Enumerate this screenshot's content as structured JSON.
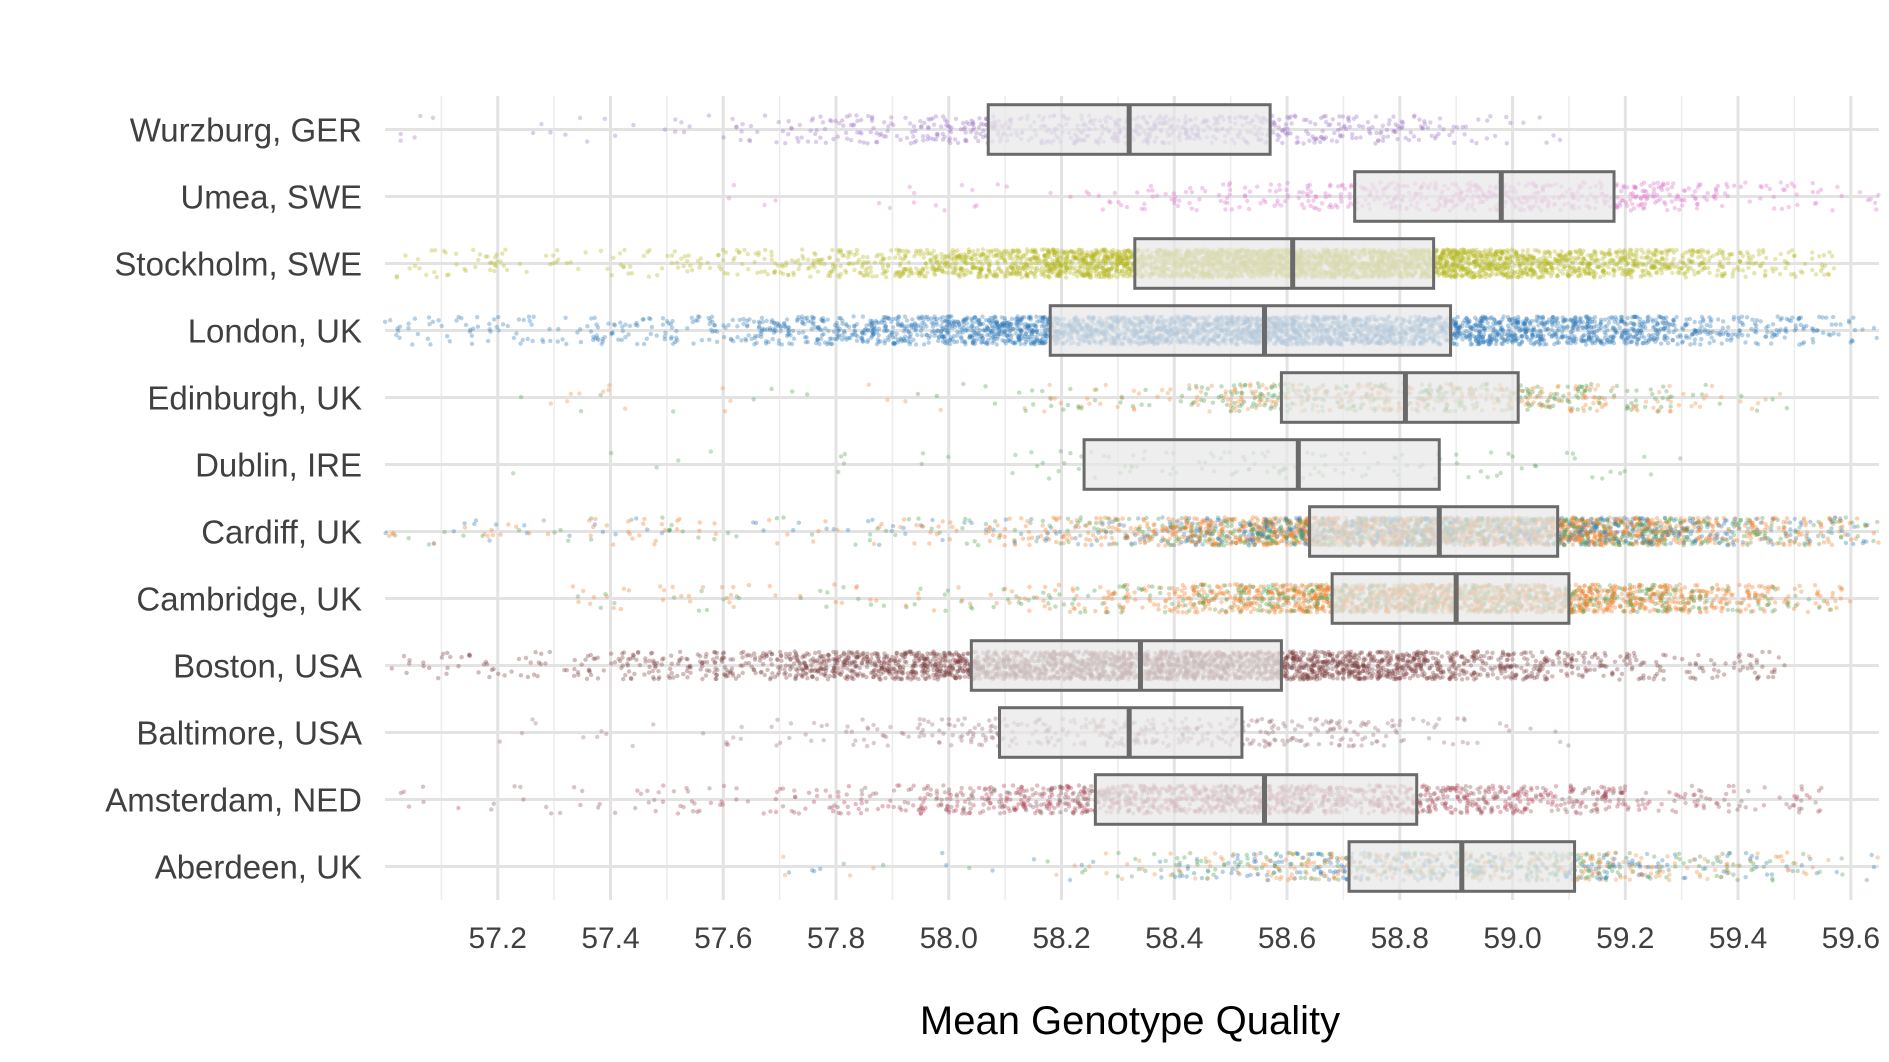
{
  "chart_data": {
    "type": "boxplot-jitter",
    "xlabel": "Mean Genotype Quality",
    "ylabel": "",
    "xlim": [
      57.0,
      59.65
    ],
    "x_ticks": [
      "57.2",
      "57.4",
      "57.6",
      "57.8",
      "58.0",
      "58.2",
      "58.4",
      "58.6",
      "58.8",
      "59.0",
      "59.2",
      "59.4",
      "59.6"
    ],
    "grid": true,
    "legend": "none",
    "categories": [
      "Wurzburg, GER",
      "Umea, SWE",
      "Stockholm, SWE",
      "London, UK",
      "Edinburgh, UK",
      "Dublin, IRE",
      "Cardiff, UK",
      "Cambridge, UK",
      "Boston, USA",
      "Baltimore, USA",
      "Amsterdam, NED",
      "Aberdeen, UK"
    ],
    "boxes": [
      {
        "category": "Wurzburg, GER",
        "q1": 58.07,
        "median": 58.32,
        "q3": 58.57
      },
      {
        "category": "Umea, SWE",
        "q1": 58.72,
        "median": 58.98,
        "q3": 59.18
      },
      {
        "category": "Stockholm, SWE",
        "q1": 58.33,
        "median": 58.61,
        "q3": 58.86
      },
      {
        "category": "London, UK",
        "q1": 58.18,
        "median": 58.56,
        "q3": 58.89
      },
      {
        "category": "Edinburgh, UK",
        "q1": 58.59,
        "median": 58.81,
        "q3": 59.01
      },
      {
        "category": "Dublin, IRE",
        "q1": 58.24,
        "median": 58.62,
        "q3": 58.87
      },
      {
        "category": "Cardiff, UK",
        "q1": 58.64,
        "median": 58.87,
        "q3": 59.08
      },
      {
        "category": "Cambridge, UK",
        "q1": 58.68,
        "median": 58.9,
        "q3": 59.1
      },
      {
        "category": "Boston, USA",
        "q1": 58.04,
        "median": 58.34,
        "q3": 58.59
      },
      {
        "category": "Baltimore, USA",
        "q1": 58.09,
        "median": 58.32,
        "q3": 58.52
      },
      {
        "category": "Amsterdam, NED",
        "q1": 58.26,
        "median": 58.56,
        "q3": 58.83
      },
      {
        "category": "Aberdeen, UK",
        "q1": 58.71,
        "median": 58.91,
        "q3": 59.11
      }
    ],
    "point_groups": [
      {
        "category": "Wurzburg, GER",
        "n": 700,
        "colors": [
          "#9a6fc7"
        ],
        "range": [
          57.02,
          59.12
        ],
        "sd": 0.32
      },
      {
        "category": "Umea, SWE",
        "n": 600,
        "colors": [
          "#dc6fc8"
        ],
        "range": [
          57.6,
          59.65
        ],
        "sd": 0.3
      },
      {
        "category": "Stockholm, SWE",
        "n": 4000,
        "colors": [
          "#b5b81f"
        ],
        "range": [
          57.02,
          59.58
        ],
        "sd": 0.38
      },
      {
        "category": "London, UK",
        "n": 3500,
        "colors": [
          "#2f77b8"
        ],
        "range": [
          57.0,
          59.65
        ],
        "sd": 0.48
      },
      {
        "category": "Edinburgh, UK",
        "n": 700,
        "colors": [
          "#f08a3c",
          "#4b9e47"
        ],
        "range": [
          57.1,
          59.5
        ],
        "sd": 0.28
      },
      {
        "category": "Dublin, IRE",
        "n": 130,
        "colors": [
          "#5aa35a"
        ],
        "range": [
          57.1,
          59.3
        ],
        "sd": 0.35
      },
      {
        "category": "Cardiff, UK",
        "n": 3200,
        "colors": [
          "#f07a22",
          "#f07a22",
          "#2f77b8",
          "#4b9e47"
        ],
        "range": [
          57.0,
          59.65
        ],
        "sd": 0.34
      },
      {
        "category": "Cambridge, UK",
        "n": 2200,
        "colors": [
          "#f07a22",
          "#f07a22",
          "#4b9e47"
        ],
        "range": [
          57.3,
          59.6
        ],
        "sd": 0.3
      },
      {
        "category": "Boston, USA",
        "n": 3000,
        "colors": [
          "#7b3b3b"
        ],
        "range": [
          57.0,
          59.5
        ],
        "sd": 0.42
      },
      {
        "category": "Baltimore, USA",
        "n": 450,
        "colors": [
          "#9c6b72"
        ],
        "range": [
          57.2,
          59.1
        ],
        "sd": 0.3
      },
      {
        "category": "Amsterdam, NED",
        "n": 1500,
        "colors": [
          "#b83a50",
          "#8c5a5a"
        ],
        "range": [
          57.0,
          59.55
        ],
        "sd": 0.4
      },
      {
        "category": "Aberdeen, UK",
        "n": 900,
        "colors": [
          "#f08a3c",
          "#2f77b8",
          "#4b9e47"
        ],
        "range": [
          57.7,
          59.65
        ],
        "sd": 0.28
      }
    ]
  }
}
